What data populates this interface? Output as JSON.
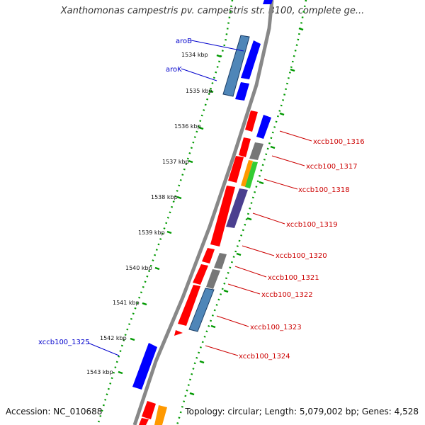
{
  "title": "Xanthomonas campestris pv. campestris str. B100, complete ge...",
  "footer": {
    "accession": "Accession: NC_010688",
    "summary": "Topology: circular; Length: 5,079,002 bp; Genes: 4,528"
  },
  "ticks": [
    "1534 kbp",
    "1535 kbp",
    "1536 kbp",
    "1537 kbp",
    "1538 kbp",
    "1539 kbp",
    "1540 kbp",
    "1541 kbp",
    "1542 kbp",
    "1543 kbp"
  ],
  "genes": [
    {
      "label": "aroB",
      "color": "#0000cc"
    },
    {
      "label": "aroK",
      "color": "#0000cc"
    },
    {
      "label": "xccb100_1316",
      "color": "#cc0000"
    },
    {
      "label": "xccb100_1317",
      "color": "#cc0000"
    },
    {
      "label": "xccb100_1318",
      "color": "#cc0000"
    },
    {
      "label": "xccb100_1319",
      "color": "#cc0000"
    },
    {
      "label": "xccb100_1320",
      "color": "#cc0000"
    },
    {
      "label": "xccb100_1321",
      "color": "#cc0000"
    },
    {
      "label": "xccb100_1322",
      "color": "#cc0000"
    },
    {
      "label": "xccb100_1323",
      "color": "#cc0000"
    },
    {
      "label": "xccb100_1324",
      "color": "#cc0000"
    },
    {
      "label": "xccb100_1325",
      "color": "#0000cc"
    }
  ],
  "colors": {
    "forward_strand": "#ff0000",
    "reverse_strand": "#0000ff",
    "gray_feature": "#777777",
    "steelblue_feature": "#4f86b8",
    "orange_feature": "#ff9900",
    "green_feature": "#33cc33",
    "purple_feature": "#4b3f8f",
    "backbone": "#888888",
    "dotted_track": "#009900"
  }
}
